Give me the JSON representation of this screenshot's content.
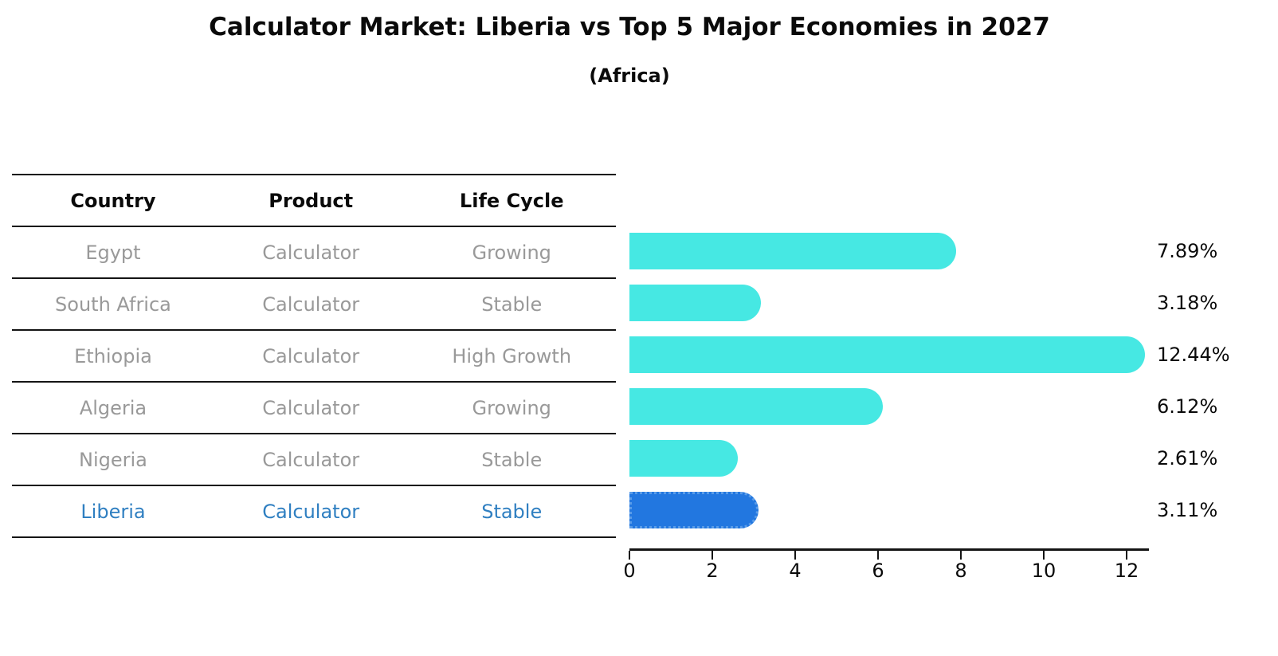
{
  "title": "Calculator Market: Liberia vs Top 5 Major Economies in 2027",
  "subtitle": "(Africa)",
  "colors": {
    "bar": "#46e8e3",
    "highlight_bar": "#2277e0",
    "highlight_bar_edge": "#5a9ce8",
    "highlight_text": "#2f7fc1",
    "row_text": "#999999",
    "axis_text": "#0a0a0a"
  },
  "table": {
    "headers": [
      "Country",
      "Product",
      "Life Cycle"
    ],
    "rows": [
      {
        "country": "Egypt",
        "product": "Calculator",
        "life_cycle": "Growing",
        "highlight": false
      },
      {
        "country": "South Africa",
        "product": "Calculator",
        "life_cycle": "Stable",
        "highlight": false
      },
      {
        "country": "Ethiopia",
        "product": "Calculator",
        "life_cycle": "High Growth",
        "highlight": false
      },
      {
        "country": "Algeria",
        "product": "Calculator",
        "life_cycle": "Growing",
        "highlight": false
      },
      {
        "country": "Nigeria",
        "product": "Calculator",
        "life_cycle": "Stable",
        "highlight": false
      },
      {
        "country": "Liberia",
        "product": "Calculator",
        "life_cycle": "Stable",
        "highlight": true
      }
    ]
  },
  "chart_data": {
    "type": "bar",
    "orientation": "horizontal",
    "title": "Calculator Market: Liberia vs Top 5 Major Economies in 2027",
    "subtitle": "(Africa)",
    "categories": [
      "Egypt",
      "South Africa",
      "Ethiopia",
      "Algeria",
      "Nigeria",
      "Liberia"
    ],
    "values": [
      7.89,
      3.18,
      12.44,
      6.12,
      2.61,
      3.11
    ],
    "value_labels": [
      "7.89%",
      "3.18%",
      "12.44%",
      "6.12%",
      "2.61%",
      "3.11%"
    ],
    "highlight_category": "Liberia",
    "highlight_index": 5,
    "xlabel": "",
    "ylabel": "",
    "xticks": [
      0,
      2,
      4,
      6,
      8,
      10,
      12
    ],
    "xtick_labels": [
      "0",
      "2",
      "4",
      "6",
      "8",
      "10",
      "12"
    ],
    "xlim": [
      0,
      12.5
    ],
    "grid": false,
    "legend": false
  }
}
